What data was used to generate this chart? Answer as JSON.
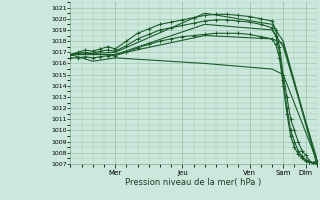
{
  "xlabel": "Pression niveau de la mer( hPa )",
  "bg_color": "#cce8dc",
  "grid_color": "#a0c8b4",
  "line_color": "#1a5c2a",
  "xlim": [
    0,
    132
  ],
  "ylim": [
    1007,
    1021.5
  ],
  "yticks": [
    1007,
    1008,
    1009,
    1010,
    1011,
    1012,
    1013,
    1014,
    1015,
    1016,
    1017,
    1018,
    1019,
    1020,
    1021
  ],
  "day_ticks": [
    {
      "x": 24,
      "label": "Mer"
    },
    {
      "x": 60,
      "label": "Jeu"
    },
    {
      "x": 96,
      "label": "Ven"
    },
    {
      "x": 114,
      "label": "Sam"
    },
    {
      "x": 126,
      "label": "Dim"
    }
  ],
  "lines": [
    {
      "x": [
        0,
        24,
        72,
        108,
        114,
        132
      ],
      "y": [
        1016.8,
        1017.0,
        1020.5,
        1019.5,
        1018.0,
        1007.2
      ],
      "marker": false
    },
    {
      "x": [
        0,
        24,
        72,
        108,
        114,
        132
      ],
      "y": [
        1016.8,
        1016.8,
        1019.5,
        1019.0,
        1017.5,
        1007.5
      ],
      "marker": false
    },
    {
      "x": [
        0,
        24,
        72,
        108,
        114,
        132
      ],
      "y": [
        1016.8,
        1016.8,
        1018.5,
        1018.2,
        1017.8,
        1007.0
      ],
      "marker": false
    },
    {
      "x": [
        0,
        12,
        24,
        72,
        108,
        114,
        132
      ],
      "y": [
        1016.8,
        1016.2,
        1016.5,
        1016.0,
        1015.5,
        1015.0,
        1007.3
      ],
      "marker": false
    },
    {
      "x": [
        0,
        4,
        8,
        12,
        16,
        20,
        24,
        30,
        36,
        42,
        48,
        54,
        60,
        66,
        72,
        78,
        84,
        90,
        96,
        102,
        108,
        110,
        112,
        114,
        116,
        118,
        120,
        122,
        124,
        126,
        128,
        130,
        132
      ],
      "y": [
        1016.8,
        1017.0,
        1017.2,
        1017.1,
        1017.3,
        1017.5,
        1017.3,
        1018.0,
        1018.7,
        1019.1,
        1019.5,
        1019.7,
        1019.9,
        1020.1,
        1020.3,
        1020.4,
        1020.4,
        1020.3,
        1020.2,
        1020.0,
        1019.8,
        1019.0,
        1017.5,
        1015.0,
        1013.0,
        1011.0,
        1010.0,
        1009.0,
        1008.2,
        1007.8,
        1007.3,
        1007.1,
        1007.0
      ],
      "marker": true
    },
    {
      "x": [
        0,
        4,
        8,
        12,
        16,
        20,
        24,
        30,
        36,
        42,
        48,
        54,
        60,
        66,
        72,
        78,
        84,
        90,
        96,
        102,
        108,
        110,
        112,
        114,
        116,
        118,
        120,
        122,
        124,
        126,
        128,
        130,
        132
      ],
      "y": [
        1016.8,
        1016.9,
        1017.0,
        1016.9,
        1017.1,
        1017.2,
        1017.1,
        1017.6,
        1018.2,
        1018.6,
        1019.0,
        1019.2,
        1019.4,
        1019.6,
        1019.8,
        1019.9,
        1019.9,
        1019.8,
        1019.7,
        1019.5,
        1019.2,
        1018.5,
        1017.0,
        1014.5,
        1012.0,
        1010.0,
        1009.0,
        1008.2,
        1007.7,
        1007.4,
        1007.2,
        1007.1,
        1007.2
      ],
      "marker": true
    },
    {
      "x": [
        0,
        4,
        8,
        12,
        16,
        20,
        24,
        30,
        36,
        42,
        48,
        54,
        60,
        66,
        72,
        78,
        84,
        90,
        96,
        102,
        108,
        110,
        112,
        114,
        116,
        118,
        120,
        122,
        124,
        126,
        128,
        130,
        132
      ],
      "y": [
        1016.5,
        1016.5,
        1016.6,
        1016.5,
        1016.6,
        1016.7,
        1016.7,
        1017.0,
        1017.4,
        1017.7,
        1018.0,
        1018.2,
        1018.4,
        1018.5,
        1018.6,
        1018.7,
        1018.7,
        1018.7,
        1018.6,
        1018.4,
        1018.2,
        1017.7,
        1016.5,
        1014.0,
        1011.5,
        1009.5,
        1008.5,
        1007.9,
        1007.5,
        1007.3,
        1007.2,
        1007.1,
        1007.3
      ],
      "marker": true
    }
  ]
}
